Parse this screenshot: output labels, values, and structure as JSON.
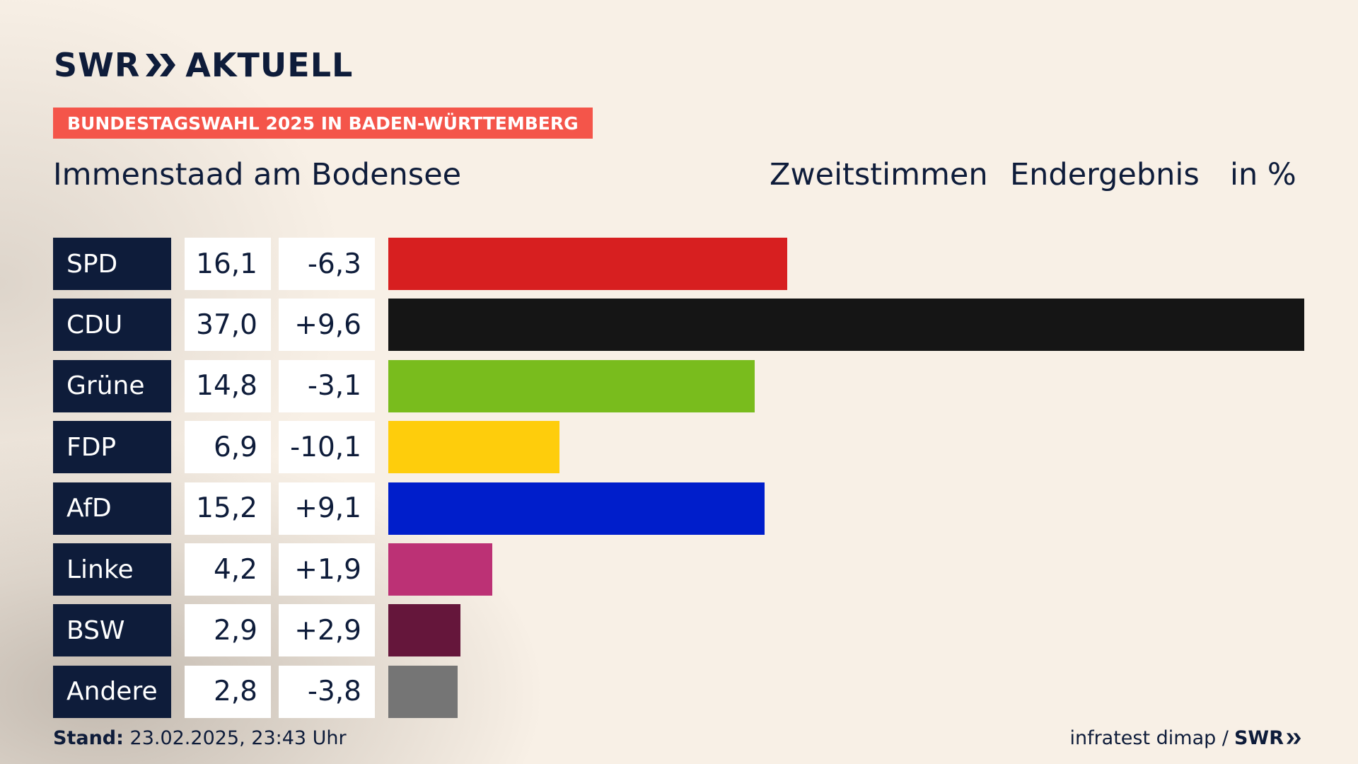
{
  "brand": {
    "left": "SWR",
    "right": "AKTUELL",
    "footer_brand": "SWR"
  },
  "badge": "BUNDESTAGSWAHL 2025 IN BADEN-WÜRTTEMBERG",
  "place": "Immenstaad am Bodensee",
  "header": {
    "vote_type": "Zweitstimmen",
    "status": "Endergebnis",
    "unit": "in %"
  },
  "footer": {
    "stand_label": "Stand:",
    "stand_value": "23.02.2025, 23:43 Uhr",
    "source": "infratest dimap /"
  },
  "colors": {
    "background": "#f8f0e6",
    "navy": "#0e1c3a",
    "badge": "#f4554a"
  },
  "chart_data": {
    "type": "bar",
    "orientation": "horizontal",
    "categories": [
      "SPD",
      "CDU",
      "Grüne",
      "FDP",
      "AfD",
      "Linke",
      "BSW",
      "Andere"
    ],
    "values": [
      16.1,
      37.0,
      14.8,
      6.9,
      15.2,
      4.2,
      2.9,
      2.8
    ],
    "value_labels": [
      "16,1",
      "37,0",
      "14,8",
      "6,9",
      "15,2",
      "4,2",
      "2,9",
      "2,8"
    ],
    "changes": [
      -6.3,
      9.6,
      -3.1,
      -10.1,
      9.1,
      1.9,
      2.9,
      -3.8
    ],
    "change_labels": [
      "-6,3",
      "+9,6",
      "-3,1",
      "-10,1",
      "+9,1",
      "+1,9",
      "+2,9",
      "-3,8"
    ],
    "colors": [
      "#d71f20",
      "#151515",
      "#79bc1d",
      "#fecd0c",
      "#001ecb",
      "#bc3175",
      "#65163b",
      "#757575"
    ],
    "xlim": [
      0,
      37.0
    ]
  }
}
